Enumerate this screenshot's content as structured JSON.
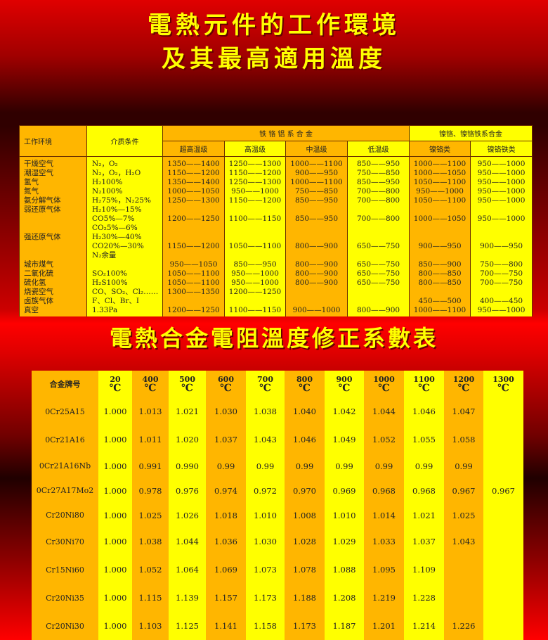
{
  "titles": {
    "t1": "電熱元件的工作環境",
    "t2": "及其最高適用溫度",
    "t3": "電熱合金電阻溫度修正系數表"
  },
  "env_table": {
    "headers": {
      "env": "工作环境",
      "medium": "介质条件",
      "fecral": "铁 铬 铝 系 合 金",
      "nicr": "镍铬、镍铬铁系合金",
      "sub": [
        "超高温级",
        "高温级",
        "中温级",
        "低温级",
        "镍铬类",
        "镍铬铁类"
      ]
    },
    "rows": [
      [
        "干燥空气",
        "N₂，O₂",
        "1350——1400",
        "1250——1300",
        "1000——1100",
        "850——950",
        "1000——1100",
        "950——1000"
      ],
      [
        "潮湿空气",
        "N₂，O₂，H₂O",
        "1150——1200",
        "1150——1200",
        "900——950",
        "750——850",
        "1000——1050",
        "950——1000"
      ],
      [
        "氢气",
        "H₂100%",
        "1350——1400",
        "1250——1300",
        "1000——1100",
        "850——950",
        "1050——1100",
        "950——1000"
      ],
      [
        "氮气",
        "N₂100%",
        "1000——1050",
        "950——1000",
        "750——850",
        "700——800",
        "950——1000",
        "950——1000"
      ],
      [
        "氨分解气体",
        "H₂75%，N₂25%",
        "1250——1300",
        "1150——1200",
        "850——950",
        "700——800",
        "1050——1100",
        "950——1000"
      ],
      [
        "弱还原气体",
        "H₂10%—15%",
        "",
        "",
        "",
        "",
        "",
        ""
      ],
      [
        "",
        "CO5%—7%",
        "1200——1250",
        "1100——1150",
        "850——950",
        "700——800",
        "1000——1050",
        "950——1000"
      ],
      [
        "",
        "CO₂5%—6%",
        "",
        "",
        "",
        "",
        "",
        ""
      ],
      [
        "强还原气体",
        "H₂30%—40%",
        "",
        "",
        "",
        "",
        "",
        ""
      ],
      [
        "",
        "CO20%—30%",
        "1150——1200",
        "1050——1100",
        "800——900",
        "650——750",
        "900——950",
        "900——950"
      ],
      [
        "",
        "N₂余量",
        "",
        "",
        "",
        "",
        "",
        ""
      ],
      [
        "城市煤气",
        "",
        "950——1050",
        "850——950",
        "800——900",
        "650——750",
        "850——900",
        "750——800"
      ],
      [
        "二氧化硫",
        "SO₂100%",
        "1050——1100",
        "950——1000",
        "800——900",
        "650——750",
        "800——850",
        "700——750"
      ],
      [
        "硫化氢",
        "H₂S100%",
        "1050——1100",
        "950——1000",
        "800——900",
        "650——750",
        "800——850",
        "700——750"
      ],
      [
        "烧瓷空气",
        "CO、SO₂、Cl₂……",
        "1300——1350",
        "1200——1250",
        "",
        "",
        "",
        ""
      ],
      [
        "卤族气体",
        "F、Cl、Br、I",
        "",
        "",
        "",
        "",
        "450——500",
        "400——450"
      ],
      [
        "真空",
        "1.33Pa",
        "1200——1250",
        "1100——1150",
        "900——1000",
        "800——900",
        "1000——1100",
        "950——1000"
      ]
    ]
  },
  "coef_table": {
    "header": "合金牌号",
    "unit": "℃",
    "temps": [
      "20",
      "400",
      "500",
      "600",
      "700",
      "800",
      "900",
      "1000",
      "1100",
      "1200",
      "1300"
    ],
    "rows": [
      [
        "0Cr25A15",
        "1.000",
        "1.013",
        "1.021",
        "1.030",
        "1.038",
        "1.040",
        "1.042",
        "1.044",
        "1.046",
        "1.047",
        ""
      ],
      [
        "0Cr21A16",
        "1.000",
        "1.011",
        "1.020",
        "1.037",
        "1.043",
        "1.046",
        "1.049",
        "1.052",
        "1.055",
        "1.058",
        ""
      ],
      [
        "0Cr21A16Nb",
        "1.000",
        "0.991",
        "0.990",
        "0.99",
        "0.99",
        "0.99",
        "0.99",
        "0.99",
        "0.99",
        "0.99",
        ""
      ],
      [
        "0Cr27A17Mo2",
        "1.000",
        "0.978",
        "0.976",
        "0.974",
        "0.972",
        "0.970",
        "0.969",
        "0.968",
        "0.968",
        "0.967",
        "0.967"
      ],
      [
        "Cr20Ni80",
        "1.000",
        "1.025",
        "1.026",
        "1.018",
        "1.010",
        "1.008",
        "1.010",
        "1.014",
        "1.021",
        "1.025",
        ""
      ],
      [
        "Cr30Ni70",
        "1.000",
        "1.038",
        "1.044",
        "1.036",
        "1.030",
        "1.028",
        "1.029",
        "1.033",
        "1.037",
        "1.043",
        ""
      ],
      [
        "Cr15Ni60",
        "1.000",
        "1.052",
        "1.064",
        "1.069",
        "1.073",
        "1.078",
        "1.088",
        "1.095",
        "1.109",
        "",
        ""
      ],
      [
        "Cr20Ni35",
        "1.000",
        "1.115",
        "1.139",
        "1.157",
        "1.173",
        "1.188",
        "1.208",
        "1.219",
        "1.228",
        "",
        ""
      ],
      [
        "Cr20Ni30",
        "1.000",
        "1.103",
        "1.125",
        "1.141",
        "1.158",
        "1.173",
        "1.187",
        "1.201",
        "1.214",
        "1.226",
        ""
      ]
    ]
  },
  "colors": {
    "orange": "#ffb600",
    "yellow": "#ffff00",
    "title": "#ffff00",
    "background": "#e00000"
  }
}
